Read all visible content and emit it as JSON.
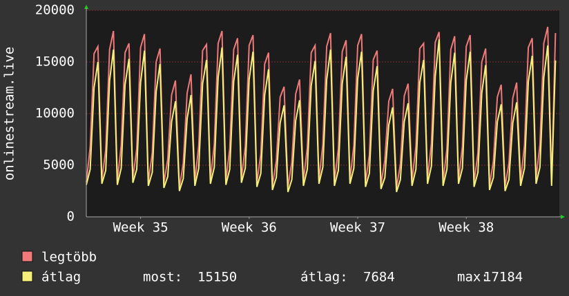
{
  "chart_data": {
    "type": "line",
    "ylabel": "onlinestream.live",
    "xlim": [
      0,
      122
    ],
    "xticks": [
      {
        "value": 14,
        "label": "Week 35"
      },
      {
        "value": 42,
        "label": "Week 36"
      },
      {
        "value": 70,
        "label": "Week 37"
      },
      {
        "value": 98,
        "label": "Week 38"
      }
    ],
    "ylim": [
      0,
      20000
    ],
    "yticks": [
      0,
      5000,
      10000,
      15000,
      20000
    ],
    "grid": true,
    "series": [
      {
        "name": "legtöbb",
        "color": "#f07a7a",
        "values": [
          3300,
          6800,
          15800,
          16500,
          3600,
          6500,
          16200,
          18000,
          3500,
          6900,
          15900,
          16800,
          3700,
          6600,
          16400,
          17700,
          3400,
          6200,
          15000,
          16300,
          3200,
          5600,
          11800,
          13200,
          2800,
          5200,
          12000,
          13800,
          3400,
          6900,
          16100,
          16700,
          3600,
          7000,
          16800,
          18000,
          3500,
          6600,
          16200,
          17300,
          3700,
          6800,
          16600,
          17600,
          3300,
          6100,
          14800,
          15900,
          3000,
          5400,
          11600,
          12600,
          2900,
          5300,
          11900,
          13300,
          3500,
          6700,
          15900,
          16600,
          3600,
          7000,
          16500,
          17800,
          3400,
          6600,
          16000,
          17100,
          3600,
          6900,
          16600,
          17700,
          3300,
          6000,
          15200,
          16100,
          3100,
          5500,
          11200,
          12400,
          2800,
          5100,
          11700,
          12900,
          3500,
          6800,
          16300,
          16800,
          3700,
          7100,
          16900,
          17900,
          3400,
          6600,
          16200,
          17500,
          3600,
          6800,
          16500,
          17600,
          3300,
          6200,
          15000,
          16300,
          3000,
          5400,
          11600,
          12800,
          2900,
          5200,
          11500,
          13000,
          3500,
          6900,
          16400,
          17300,
          3700,
          7000,
          16800,
          18400,
          3400,
          17800
        ]
      },
      {
        "name": "átlag",
        "color": "#f5f07a",
        "values": [
          3100,
          4600,
          12500,
          15000,
          3200,
          4500,
          13200,
          16200,
          3100,
          4700,
          12800,
          15300,
          3300,
          4600,
          13000,
          16100,
          3000,
          4300,
          12100,
          14800,
          2800,
          3900,
          9200,
          11200,
          2500,
          3700,
          9500,
          11800,
          3000,
          4700,
          12900,
          15200,
          3200,
          4800,
          13500,
          16400,
          3100,
          4600,
          13100,
          15700,
          3300,
          4700,
          13300,
          16000,
          2900,
          4200,
          11800,
          14300,
          2600,
          3800,
          9100,
          10800,
          2400,
          3600,
          9300,
          11300,
          3000,
          4600,
          12700,
          15100,
          3200,
          4800,
          13300,
          16200,
          3000,
          4500,
          12900,
          15500,
          3200,
          4700,
          13400,
          16000,
          2900,
          4200,
          12200,
          14600,
          2700,
          3800,
          8900,
          10600,
          2400,
          3600,
          9200,
          11000,
          3000,
          4600,
          13000,
          15200,
          3200,
          4900,
          13600,
          17184,
          3000,
          4600,
          13000,
          15900,
          3200,
          4700,
          13200,
          16000,
          2900,
          4300,
          12000,
          14700,
          2600,
          3800,
          9200,
          10900,
          2500,
          3600,
          9100,
          11100,
          3000,
          4700,
          13100,
          15600,
          3200,
          4800,
          13500,
          16600,
          3000,
          15150
        ]
      }
    ],
    "legend_stats": [
      {
        "label": "most:",
        "value": 15150
      },
      {
        "label": "átlag:",
        "value": 7684
      },
      {
        "label": "max:",
        "value": 17184
      }
    ]
  }
}
